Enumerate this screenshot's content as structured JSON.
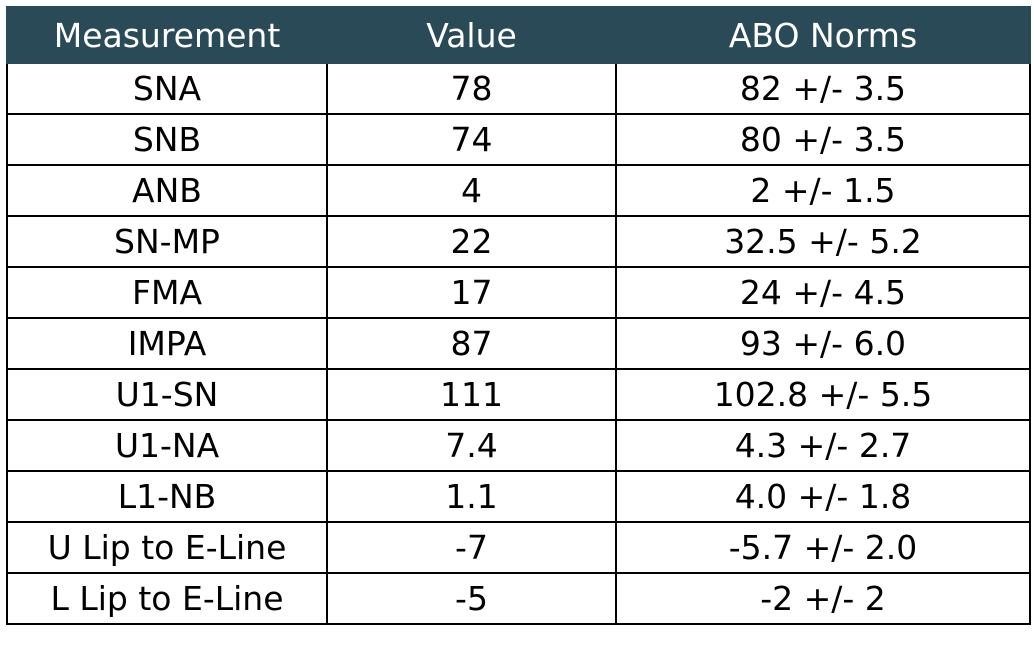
{
  "table": {
    "headers": [
      "Measurement",
      "Value",
      "ABO Norms"
    ],
    "rows": [
      [
        "SNA",
        "78",
        "82 +/- 3.5"
      ],
      [
        "SNB",
        "74",
        "80 +/- 3.5"
      ],
      [
        "ANB",
        "4",
        "2 +/- 1.5"
      ],
      [
        "SN-MP",
        "22",
        "32.5 +/- 5.2"
      ],
      [
        "FMA",
        "17",
        "24 +/- 4.5"
      ],
      [
        "IMPA",
        "87",
        "93 +/- 6.0"
      ],
      [
        "U1-SN",
        "111",
        "102.8 +/- 5.5"
      ],
      [
        "U1-NA",
        "7.4",
        "4.3 +/- 2.7"
      ],
      [
        "L1-NB",
        "1.1",
        "4.0 +/- 1.8"
      ],
      [
        "U Lip to E-Line",
        "-7",
        "-5.7 +/- 2.0"
      ],
      [
        "L Lip to E-Line",
        "-5",
        "-2 +/- 2"
      ]
    ]
  },
  "colors": {
    "header_background": "#2a4a57",
    "header_text": "#ffffff",
    "border": "#000000"
  }
}
